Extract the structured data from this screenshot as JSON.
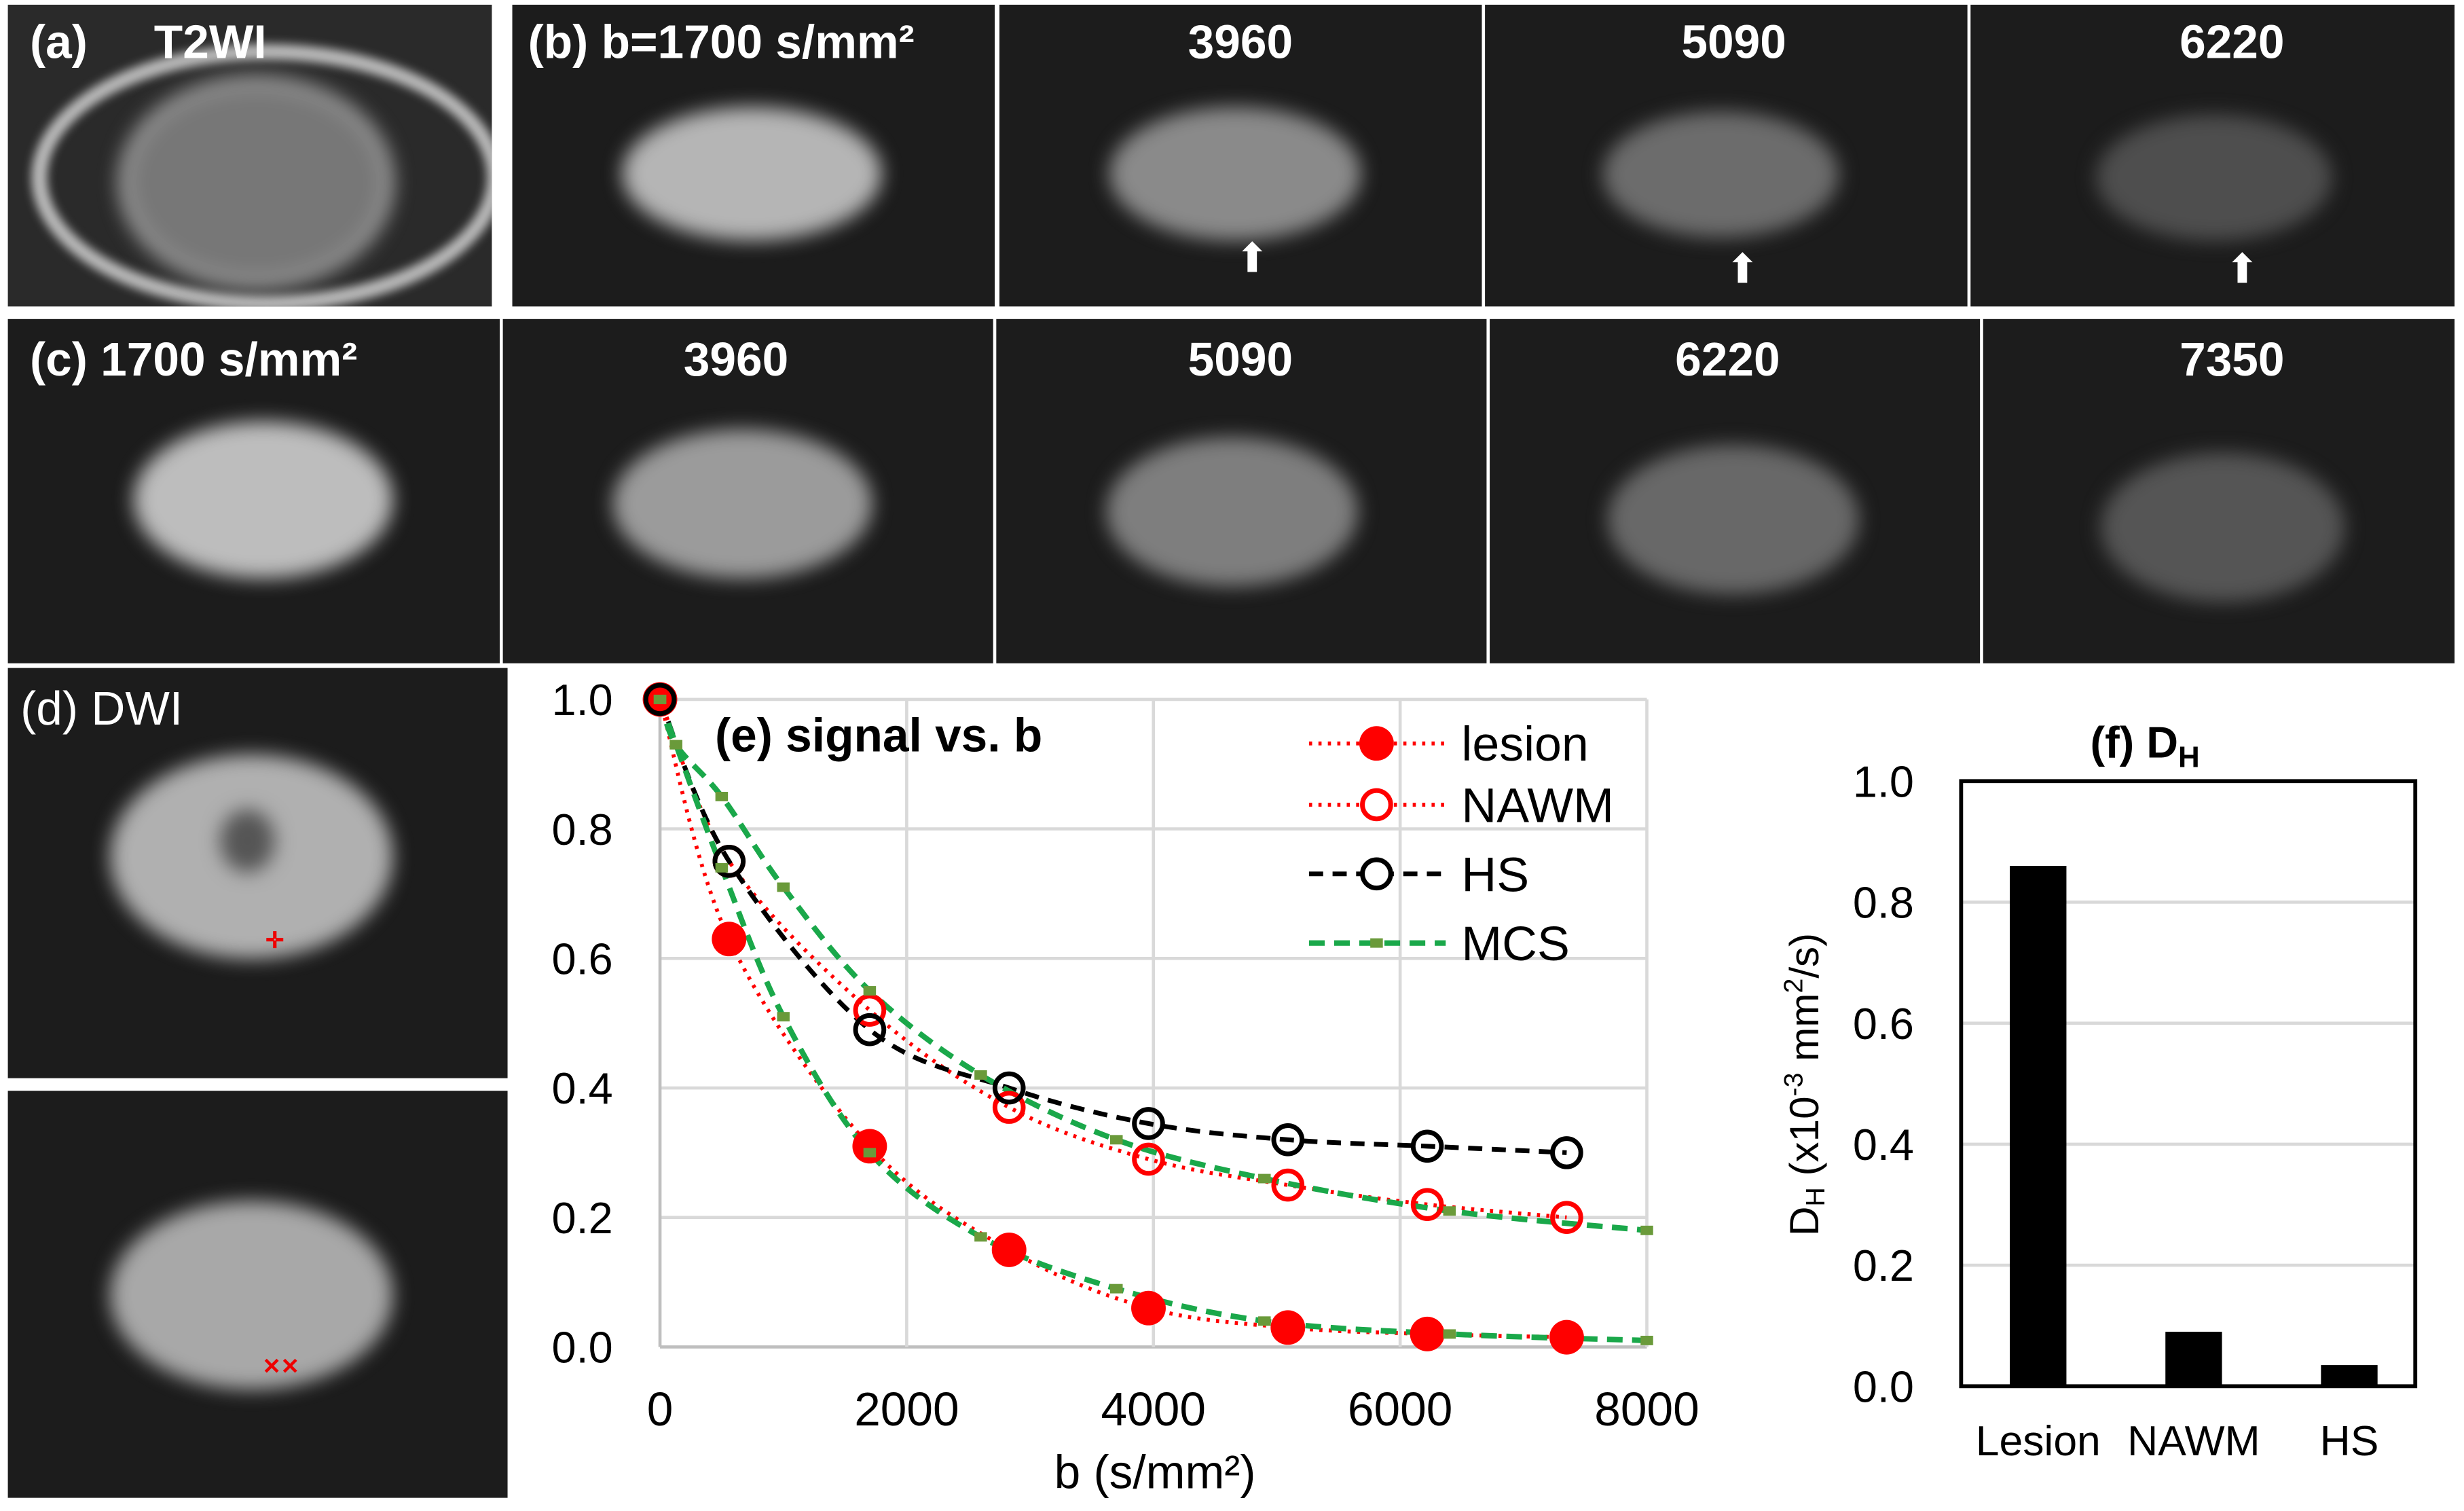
{
  "panels": {
    "a": {
      "label": "(a)",
      "title": "T2WI"
    },
    "b": {
      "labels": [
        "(b) b=1700 s/mm²",
        "3960",
        "5090",
        "6220"
      ]
    },
    "c": {
      "labels": [
        "(c)  1700 s/mm²",
        "3960",
        "5090",
        "6220",
        "7350"
      ]
    },
    "d": {
      "label": "(d) DWI"
    }
  },
  "colors": {
    "lesion": "#ff0000",
    "nawm": "#ff0000",
    "hs": "#000000",
    "mcs": "#1aa84a",
    "grid": "#d9d9d9",
    "bar": "#000000"
  },
  "chart_data": [
    {
      "type": "line",
      "title": "(e) signal vs. b",
      "xlabel": "b (s/mm²)",
      "ylabel": "",
      "xlim": [
        0,
        8000
      ],
      "ylim": [
        0,
        1.0
      ],
      "xticks": [
        "0",
        "2000",
        "4000",
        "6000",
        "8000"
      ],
      "yticks": [
        "0.0",
        "0.2",
        "0.4",
        "0.6",
        "0.8",
        "1.0"
      ],
      "grid": true,
      "legend_position": "top-right",
      "series": [
        {
          "name": "lesion",
          "marker": "filled-circle",
          "line": "dotted",
          "x": [
            0,
            560,
            1700,
            2830,
            3960,
            5090,
            6220,
            7350
          ],
          "y": [
            1.0,
            0.63,
            0.31,
            0.15,
            0.06,
            0.03,
            0.02,
            0.015
          ]
        },
        {
          "name": "NAWM",
          "marker": "open-circle",
          "line": "dotted",
          "x": [
            0,
            560,
            1700,
            2830,
            3960,
            5090,
            6220,
            7350
          ],
          "y": [
            1.0,
            0.75,
            0.52,
            0.37,
            0.29,
            0.25,
            0.22,
            0.2
          ]
        },
        {
          "name": "HS",
          "marker": "open-circle",
          "line": "dashed",
          "x": [
            0,
            560,
            1700,
            2830,
            3960,
            5090,
            6220,
            7350
          ],
          "y": [
            1.0,
            0.75,
            0.49,
            0.4,
            0.345,
            0.32,
            0.31,
            0.3
          ]
        },
        {
          "name": "MCS",
          "marker": "small",
          "line": "dashed",
          "x": [
            0,
            130,
            500,
            1000,
            1700,
            2600,
            3700,
            4900,
            6400,
            8000
          ],
          "y": [
            1.0,
            0.93,
            0.85,
            0.71,
            0.55,
            0.42,
            0.32,
            0.26,
            0.21,
            0.18
          ]
        },
        {
          "name": "MCS (lesion fit)",
          "marker": "small",
          "line": "dashed",
          "legend": false,
          "x": [
            0,
            130,
            500,
            1000,
            1700,
            2600,
            3700,
            4900,
            6400,
            8000
          ],
          "y": [
            1.0,
            0.93,
            0.74,
            0.51,
            0.3,
            0.17,
            0.09,
            0.04,
            0.02,
            0.01
          ]
        }
      ]
    },
    {
      "type": "bar",
      "title": "(f) D",
      "title_sub": "H",
      "ylabel": "D",
      "ylabel_sub": "H",
      "ylabel_rest": " (x10",
      "ylabel_sup1": "-3",
      "ylabel_rest2": " mm",
      "ylabel_sup2": "2",
      "ylabel_rest3": "/s)",
      "ylim": [
        0,
        1.0
      ],
      "yticks": [
        "0.0",
        "0.2",
        "0.4",
        "0.6",
        "0.8",
        "1.0"
      ],
      "categories": [
        "Lesion",
        "NAWM",
        "HS"
      ],
      "values": [
        0.86,
        0.09,
        0.035
      ]
    }
  ]
}
